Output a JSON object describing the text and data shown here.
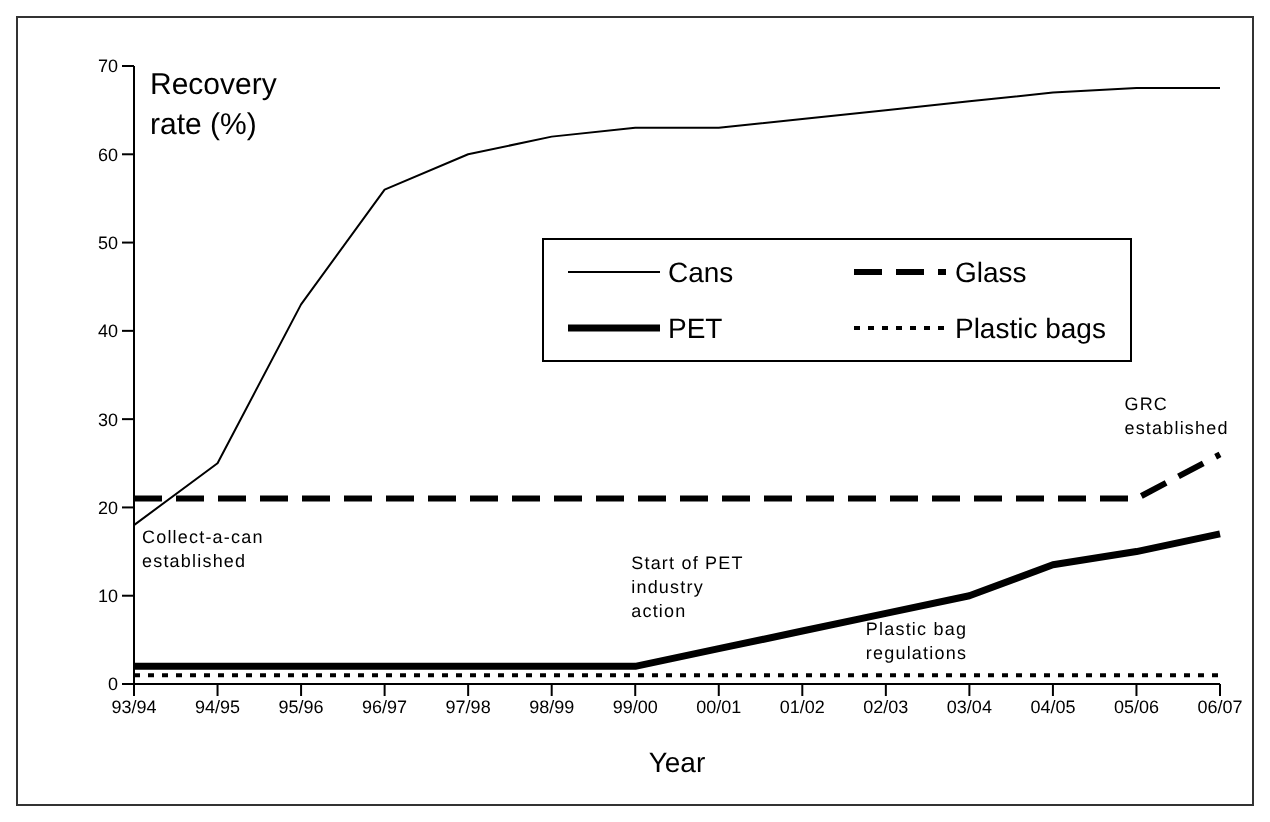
{
  "chart_data": {
    "type": "line",
    "xlabel": "Year",
    "ylabel": "Recovery rate (%)",
    "categories": [
      "93/94",
      "94/95",
      "95/96",
      "96/97",
      "97/98",
      "98/99",
      "99/00",
      "00/01",
      "01/02",
      "02/03",
      "03/04",
      "04/05",
      "05/06",
      "06/07"
    ],
    "series": [
      {
        "name": "Cans",
        "color": "#000000",
        "line_style": "solid",
        "values": [
          18,
          25,
          43,
          56,
          60,
          62,
          63,
          63,
          64,
          65,
          66,
          67,
          67.5,
          67.5
        ]
      },
      {
        "name": "Glass",
        "color": "#000000",
        "line_style": "dashed",
        "values": [
          21,
          21,
          21,
          21,
          21,
          21,
          21,
          21,
          21,
          21,
          21,
          21,
          21,
          26
        ]
      },
      {
        "name": "PET",
        "color": "#000000",
        "line_style": "solid",
        "values": [
          2,
          2,
          2,
          2,
          2,
          2,
          2,
          4,
          6,
          8,
          10,
          13.5,
          15,
          17
        ]
      },
      {
        "name": "Plastic bags",
        "color": "#000000",
        "line_style": "dotted",
        "values": [
          1,
          1,
          1,
          1,
          1,
          1,
          1,
          1,
          1,
          1,
          1,
          1,
          1,
          1
        ]
      }
    ],
    "ylim": [
      0,
      70
    ],
    "yticks": [
      0,
      10,
      20,
      30,
      40,
      50,
      60,
      70
    ],
    "marker": "none",
    "legend": "right",
    "annotations": [
      "Collect-a-can established",
      "Start of PET industry action",
      "Plastic bag regulations",
      "GRC established"
    ]
  }
}
